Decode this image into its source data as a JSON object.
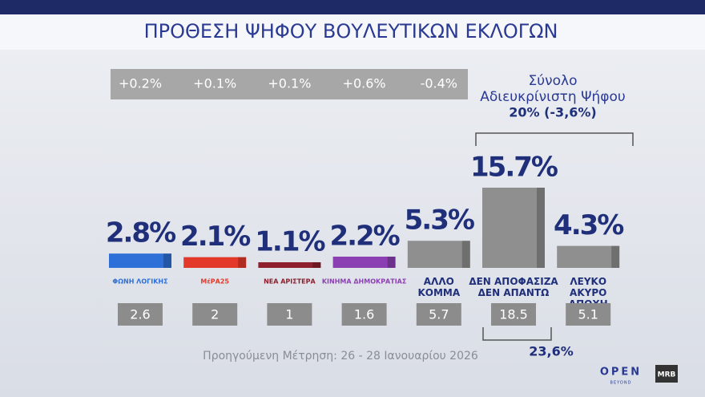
{
  "chart_data": {
    "type": "bar",
    "title": "ΠΡΟΘΕΣΗ ΨΗΦΟΥ ΒΟΥΛΕΥΤΙΚΩΝ ΕΚΛΟΓΩΝ",
    "categories": [
      "ΦΩΝΗ ΛΟΓΙΚΗΣ",
      "ΜέΡΑ25",
      "ΝΕΑ ΑΡΙΣΤΕΡΑ",
      "ΚΙΝΗΜΑ ΔΗΜΟΚΡΑΤΙΑΣ",
      "ΑΛΛΟ ΚΟΜΜΑ",
      "ΔΕΝ ΑΠΟΦΑΣΙΖΑ ΔΕΝ ΑΠΑΝΤΩ",
      "ΛΕΥΚΟ ΑΚΥΡΟ ΑΠΟΧΗ"
    ],
    "values": [
      2.8,
      2.1,
      1.1,
      2.2,
      5.3,
      15.7,
      4.3
    ],
    "value_labels": [
      "2.8%",
      "2.1%",
      "1.1%",
      "2.2%",
      "5.3%",
      "15.7%",
      "4.3%"
    ],
    "colors": [
      "#2f6fd8",
      "#e2392b",
      "#8e1f2c",
      "#8b3fb3",
      "#8f8f8f",
      "#8f8f8f",
      "#8f8f8f"
    ],
    "changes": [
      {
        "value": 0.2,
        "label": "+0.2%"
      },
      {
        "value": 0.1,
        "label": "+0.1%"
      },
      {
        "value": 0.1,
        "label": "+0.1%"
      },
      {
        "value": 0.6,
        "label": "+0.6%"
      },
      {
        "value": -0.4,
        "label": "-0.4%"
      }
    ],
    "previous": [
      2.6,
      2,
      1,
      1.6,
      5.7,
      18.5,
      5.1
    ],
    "previous_note": "Προηγούμενη Μέτρηση: 26 - 28 Ιανουαρίου 2026",
    "undecided_title": "Σύνολο Αδιευκρίνιστη Ψήφου",
    "undecided_value": "20% (-3,6%)",
    "undecided_previous": "23,6%",
    "logos": [
      "OPEN",
      "BEYOND",
      "MRB"
    ]
  }
}
